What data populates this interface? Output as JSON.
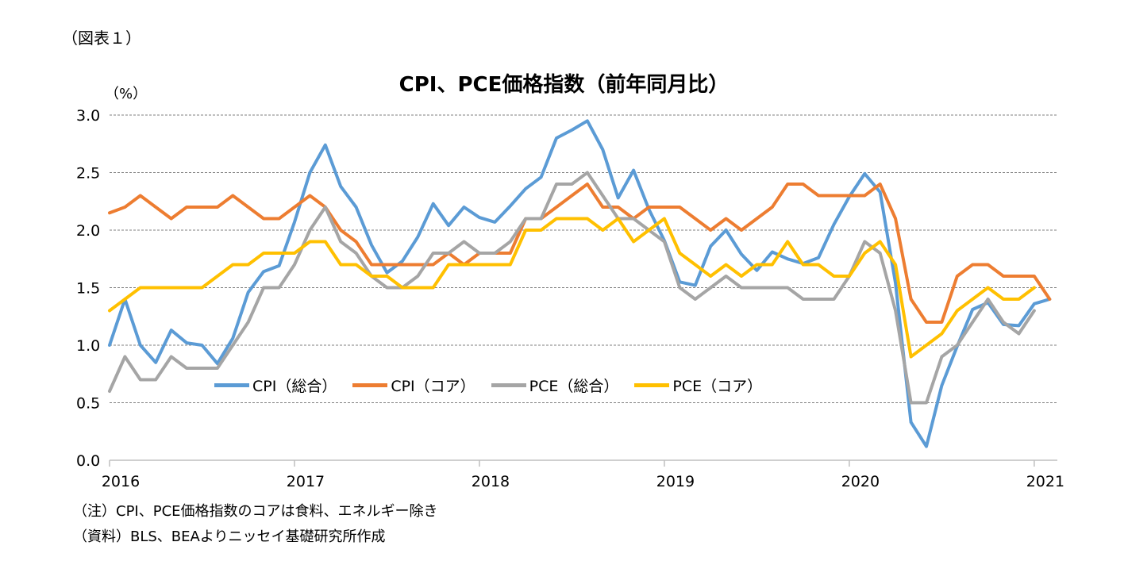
{
  "fig_label": "（図表１）",
  "notes": {
    "note": "（注）CPI、PCE価格指数のコアは食料、エネルギー除き",
    "source": "（資料）BLS、BEAよりニッセイ基礎研究所作成"
  },
  "chart_data": {
    "type": "line",
    "title": "CPI、PCE価格指数（前年同月比）",
    "ylabel": "（%）",
    "xlabel": "",
    "ylim": [
      0,
      3.0
    ],
    "yticks": [
      "0.0",
      "0.5",
      "1.0",
      "1.5",
      "2.0",
      "2.5",
      "3.0"
    ],
    "xticks": [
      "2016",
      "2017",
      "2018",
      "2019",
      "2020",
      "2021"
    ],
    "x_start": "2016-01",
    "grid": true,
    "legend_position": "bottom-left inside",
    "series": [
      {
        "name": "CPI（総合）",
        "color": "#5b9bd5",
        "values": [
          1.4,
          1.0,
          0.85,
          1.13,
          1.02,
          1.0,
          0.84,
          1.06,
          1.46,
          1.64,
          1.69,
          2.07,
          2.5,
          2.74,
          2.38,
          2.2,
          1.87,
          1.63,
          1.73,
          1.94,
          2.23,
          2.04,
          2.2,
          2.11,
          2.07,
          2.21,
          2.36,
          2.46,
          2.8,
          2.87,
          2.95,
          2.7,
          2.28,
          2.52,
          2.18,
          1.91,
          1.55,
          1.52,
          1.86,
          2.0,
          1.79,
          1.65,
          1.81,
          1.75,
          1.71,
          1.76,
          2.05,
          2.29,
          2.49,
          2.33,
          1.54,
          0.33,
          0.12,
          0.65,
          0.99,
          1.31,
          1.37,
          1.18,
          1.17,
          1.36,
          1.4
        ],
        "start_value": 1.0
      },
      {
        "name": "CPI（コア）",
        "color": "#ed7d31",
        "values": [
          2.2,
          2.3,
          2.2,
          2.1,
          2.2,
          2.2,
          2.2,
          2.3,
          2.2,
          2.1,
          2.1,
          2.2,
          2.3,
          2.2,
          2.0,
          1.9,
          1.7,
          1.7,
          1.7,
          1.7,
          1.7,
          1.8,
          1.7,
          1.8,
          1.8,
          1.8,
          2.1,
          2.1,
          2.2,
          2.3,
          2.4,
          2.2,
          2.2,
          2.1,
          2.2,
          2.2,
          2.2,
          2.1,
          2.0,
          2.1,
          2.0,
          2.1,
          2.2,
          2.4,
          2.4,
          2.3,
          2.3,
          2.3,
          2.3,
          2.4,
          2.1,
          1.4,
          1.2,
          1.2,
          1.6,
          1.7,
          1.7,
          1.6,
          1.6,
          1.6,
          1.4
        ],
        "start_value": 2.15
      },
      {
        "name": "PCE（総合）",
        "color": "#a5a5a5",
        "values": [
          0.9,
          0.7,
          0.7,
          0.9,
          0.8,
          0.8,
          0.8,
          1.0,
          1.2,
          1.5,
          1.5,
          1.7,
          2.0,
          2.2,
          1.9,
          1.8,
          1.6,
          1.5,
          1.5,
          1.6,
          1.8,
          1.8,
          1.9,
          1.8,
          1.8,
          1.9,
          2.1,
          2.1,
          2.4,
          2.4,
          2.5,
          2.3,
          2.1,
          2.1,
          2.0,
          1.9,
          1.5,
          1.4,
          1.5,
          1.6,
          1.5,
          1.5,
          1.5,
          1.5,
          1.4,
          1.4,
          1.4,
          1.6,
          1.9,
          1.8,
          1.3,
          0.5,
          0.5,
          0.9,
          1.0,
          1.2,
          1.4,
          1.2,
          1.1,
          1.3
        ],
        "start_value": 0.6
      },
      {
        "name": "PCE（コア）",
        "color": "#ffc000",
        "values": [
          1.4,
          1.5,
          1.5,
          1.5,
          1.5,
          1.5,
          1.6,
          1.7,
          1.7,
          1.8,
          1.8,
          1.8,
          1.9,
          1.9,
          1.7,
          1.7,
          1.6,
          1.6,
          1.5,
          1.5,
          1.5,
          1.7,
          1.7,
          1.7,
          1.7,
          1.7,
          2.0,
          2.0,
          2.1,
          2.1,
          2.1,
          2.0,
          2.1,
          1.9,
          2.0,
          2.1,
          1.8,
          1.7,
          1.6,
          1.7,
          1.6,
          1.7,
          1.7,
          1.9,
          1.7,
          1.7,
          1.6,
          1.6,
          1.8,
          1.9,
          1.7,
          0.9,
          1.0,
          1.1,
          1.3,
          1.4,
          1.5,
          1.4,
          1.4,
          1.5
        ],
        "start_value": 1.3
      }
    ]
  }
}
